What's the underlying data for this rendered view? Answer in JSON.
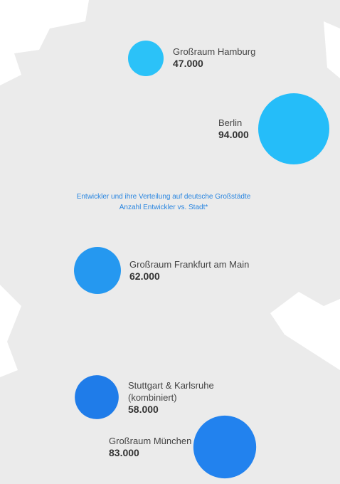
{
  "chart_data": {
    "type": "bubble-map",
    "title": "Entwickler und ihre Verteilung auf deutsche Großstädte",
    "subtitle": "Anzahl Entwickler vs. Stadt*",
    "categories": [
      "Großraum Hamburg",
      "Berlin",
      "Großraum Frankfurt am Main",
      "Stuttgart & Karlsruhe (kombiniert)",
      "Großraum München"
    ],
    "values": [
      47000,
      94000,
      62000,
      58000,
      83000
    ],
    "value_labels": [
      "47.000",
      "94.000",
      "62.000",
      "58.000",
      "83.000"
    ],
    "colors": [
      "#2bc2f8",
      "#25bdf9",
      "#2598f0",
      "#1f7ce9",
      "#2282ee"
    ]
  }
}
